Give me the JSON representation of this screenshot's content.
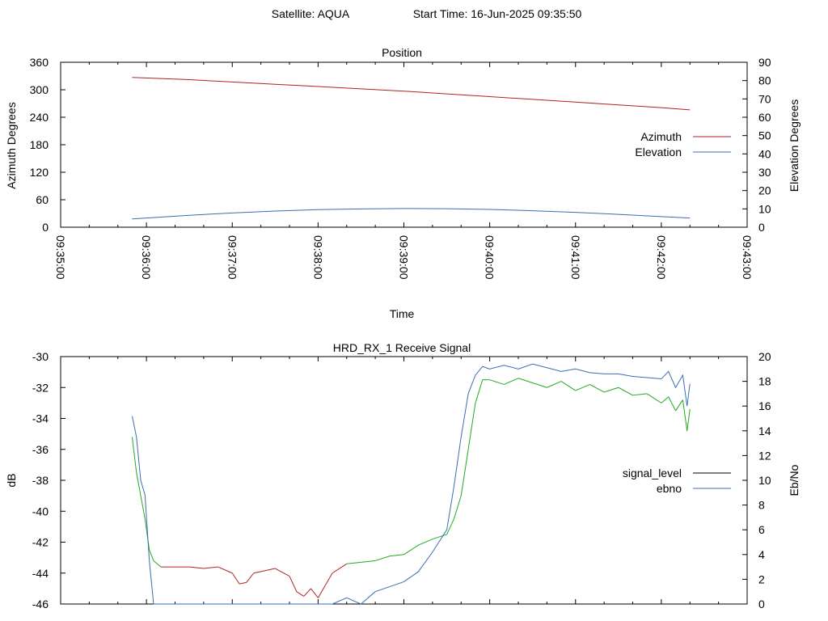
{
  "header": {
    "satellite": "Satellite: AQUA",
    "start_time": "Start Time: 16-Jun-2025 09:35:50"
  },
  "chart_data": [
    {
      "type": "line",
      "title": "Position",
      "xlabel": "Time",
      "ylabel": "Azimuth Degrees",
      "y2label": "Elevation Degrees",
      "x_tick_labels": [
        "09:35:00",
        "09:36:00",
        "09:37:00",
        "09:38:00",
        "09:39:00",
        "09:40:00",
        "09:41:00",
        "09:42:00",
        "09:43:00"
      ],
      "xlim": [
        "09:35:00",
        "09:43:00"
      ],
      "ylim": [
        0,
        360
      ],
      "y_ticks": [
        0,
        60,
        120,
        180,
        240,
        300,
        360
      ],
      "y2lim": [
        0,
        90
      ],
      "y2_ticks": [
        0,
        10,
        20,
        30,
        40,
        50,
        60,
        70,
        80,
        90
      ],
      "grid": false,
      "legend_position": "right",
      "series": [
        {
          "name": "Azimuth",
          "axis": "left",
          "color": "#b22222",
          "x": [
            "09:35:50",
            "09:36:30",
            "09:37:00",
            "09:37:30",
            "09:38:00",
            "09:38:30",
            "09:39:00",
            "09:39:30",
            "09:40:00",
            "09:40:30",
            "09:41:00",
            "09:41:30",
            "09:42:00",
            "09:42:20"
          ],
          "y": [
            327,
            322,
            317,
            312,
            307,
            302,
            297,
            291,
            285,
            279,
            273,
            267,
            261,
            256
          ]
        },
        {
          "name": "Elevation",
          "axis": "right",
          "color": "#3a6fb0",
          "x": [
            "09:35:50",
            "09:36:30",
            "09:37:00",
            "09:37:30",
            "09:38:00",
            "09:38:30",
            "09:39:00",
            "09:39:30",
            "09:40:00",
            "09:40:30",
            "09:41:00",
            "09:41:30",
            "09:42:00",
            "09:42:20"
          ],
          "y": [
            4.5,
            6.5,
            7.8,
            8.8,
            9.6,
            10.0,
            10.2,
            10.1,
            9.7,
            9.0,
            8.1,
            7.0,
            5.8,
            5.0
          ]
        }
      ]
    },
    {
      "type": "line",
      "title": "HRD_RX_1 Receive Signal",
      "ylabel": "dB",
      "y2label": "Eb/No",
      "xlim": [
        "09:35:00",
        "09:43:00"
      ],
      "ylim": [
        -46,
        -30
      ],
      "y_ticks": [
        -46,
        -44,
        -42,
        -40,
        -38,
        -36,
        -34,
        -32,
        -30
      ],
      "y2lim": [
        0,
        20
      ],
      "y2_ticks": [
        0,
        2,
        4,
        6,
        8,
        10,
        12,
        14,
        16,
        18,
        20
      ],
      "grid": false,
      "legend_position": "right",
      "legend_entries": [
        {
          "name": "signal_level",
          "color": "#000000"
        },
        {
          "name": "ebno",
          "color": "#3a6fb0"
        }
      ],
      "series": [
        {
          "name": "signal_level",
          "axis": "left",
          "color": "#b22222",
          "color_above_threshold": "#22aa22",
          "threshold": -43.5,
          "x": [
            "09:35:50",
            "09:35:53",
            "09:35:56",
            "09:35:59",
            "09:36:02",
            "09:36:05",
            "09:36:10",
            "09:36:20",
            "09:36:30",
            "09:36:40",
            "09:36:50",
            "09:37:00",
            "09:37:05",
            "09:37:10",
            "09:37:15",
            "09:37:20",
            "09:37:30",
            "09:37:40",
            "09:37:45",
            "09:37:50",
            "09:37:55",
            "09:38:00",
            "09:38:05",
            "09:38:10",
            "09:38:20",
            "09:38:30",
            "09:38:40",
            "09:38:50",
            "09:39:00",
            "09:39:10",
            "09:39:20",
            "09:39:30",
            "09:39:35",
            "09:39:40",
            "09:39:45",
            "09:39:50",
            "09:39:55",
            "09:40:00",
            "09:40:10",
            "09:40:20",
            "09:40:30",
            "09:40:40",
            "09:40:50",
            "09:41:00",
            "09:41:10",
            "09:41:20",
            "09:41:30",
            "09:41:40",
            "09:41:50",
            "09:42:00",
            "09:42:05",
            "09:42:10",
            "09:42:15",
            "09:42:18",
            "09:42:20"
          ],
          "y": [
            -35.2,
            -37.5,
            -39.0,
            -40.5,
            -42.5,
            -43.2,
            -43.6,
            -43.6,
            -43.6,
            -43.7,
            -43.6,
            -44.0,
            -44.7,
            -44.6,
            -44.0,
            -43.9,
            -43.7,
            -44.2,
            -45.2,
            -45.5,
            -45.0,
            -45.6,
            -44.8,
            -44.0,
            -43.4,
            -43.3,
            -43.2,
            -42.9,
            -42.8,
            -42.2,
            -41.8,
            -41.5,
            -40.5,
            -39.0,
            -36.0,
            -33.0,
            -31.5,
            -31.5,
            -31.8,
            -31.4,
            -31.7,
            -32.0,
            -31.6,
            -32.2,
            -31.8,
            -32.3,
            -32.0,
            -32.5,
            -32.4,
            -33.0,
            -32.6,
            -33.5,
            -32.8,
            -34.8,
            -33.4
          ]
        },
        {
          "name": "ebno",
          "axis": "right",
          "color": "#3a6fb0",
          "x": [
            "09:35:50",
            "09:35:53",
            "09:35:56",
            "09:35:59",
            "09:36:02",
            "09:36:05",
            "09:38:10",
            "09:38:20",
            "09:38:30",
            "09:38:40",
            "09:38:50",
            "09:39:00",
            "09:39:10",
            "09:39:20",
            "09:39:30",
            "09:39:35",
            "09:39:40",
            "09:39:45",
            "09:39:50",
            "09:39:55",
            "09:40:00",
            "09:40:10",
            "09:40:20",
            "09:40:30",
            "09:40:40",
            "09:40:50",
            "09:41:00",
            "09:41:10",
            "09:41:20",
            "09:41:30",
            "09:41:40",
            "09:41:50",
            "09:42:00",
            "09:42:05",
            "09:42:10",
            "09:42:15",
            "09:42:18",
            "09:42:20"
          ],
          "y": [
            15.2,
            13.5,
            10.0,
            8.8,
            3.5,
            0.0,
            0.0,
            0.5,
            0.0,
            1.0,
            1.4,
            1.8,
            2.6,
            4.2,
            6.0,
            9.5,
            13.5,
            17.0,
            18.5,
            19.2,
            19.0,
            19.3,
            19.0,
            19.4,
            19.1,
            18.8,
            19.0,
            18.7,
            18.6,
            18.6,
            18.4,
            18.3,
            18.2,
            18.8,
            17.5,
            18.5,
            16.0,
            17.8
          ]
        }
      ]
    }
  ]
}
